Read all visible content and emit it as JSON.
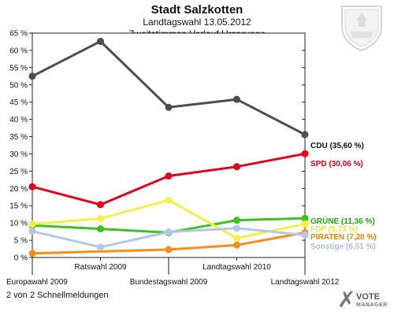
{
  "header": {
    "title": "Stadt Salzkotten",
    "subtitle": "Landtagswahl 13.05.2012",
    "chart_subtitle": "Zweitstimmen Verlauf Ursprunge"
  },
  "footer": {
    "note": "2 von 2 Schnellmeldungen"
  },
  "brand": {
    "logo_text": "VOTE",
    "logo_sub": "MANAGER",
    "crest_icon": "coat-of-arms-icon"
  },
  "chart_data": {
    "type": "line",
    "title": "Stadt Salzkotten",
    "subtitle": "Landtagswahl 13.05.2012",
    "x": [
      "Europawahl 2009",
      "Ratswahl 2009",
      "Bundestagswahl 2009",
      "Landtagswahl 2010",
      "Landtagswahl 2012"
    ],
    "x_label_rows": [
      "bottom",
      "top",
      "bottom",
      "top",
      "bottom"
    ],
    "ylim": [
      0,
      65
    ],
    "ytick_step": 5,
    "ytick_labels": [
      "0 %",
      "5 %",
      "10 %",
      "15 %",
      "20 %",
      "25 %",
      "30 %",
      "35 %",
      "40 %",
      "45 %",
      "50 %",
      "55 %",
      "60 %",
      "65 %"
    ],
    "grid": false,
    "legend": "right-end labels",
    "series": [
      {
        "name": "CDU",
        "label": "CDU (35,60 %)",
        "color": "#4d4d4d",
        "label_color": "#111111",
        "values": [
          52.5,
          62.6,
          43.5,
          45.8,
          35.6
        ]
      },
      {
        "name": "SPD",
        "label": "SPD (30,06 %)",
        "color": "#e2001a",
        "label_color": "#d0001a",
        "values": [
          20.5,
          15.3,
          23.6,
          26.3,
          30.06
        ]
      },
      {
        "name": "GRÜNE",
        "label": "GRÜNE (11,36 %)",
        "color": "#3cc21f",
        "label_color": "#22aa10",
        "values": [
          9.3,
          8.3,
          7.2,
          10.8,
          11.36
        ]
      },
      {
        "name": "FDP",
        "label": "FDP (9,73 %)",
        "color": "#f5ef4a",
        "label_color": "#f0e640",
        "values": [
          9.7,
          11.3,
          16.6,
          5.6,
          9.73
        ]
      },
      {
        "name": "PIRATEN",
        "label": "PIRATEN (7,20 %)",
        "color": "#ff8c1a",
        "label_color": "#ff8000",
        "values": [
          1.2,
          null,
          2.3,
          3.6,
          7.2
        ]
      },
      {
        "name": "Sonstige",
        "label": "Sonstige (6,51 %)",
        "color": "#b3c7e6",
        "label_color": "#a8bfe6",
        "values": [
          7.6,
          3.0,
          7.4,
          8.5,
          6.51
        ]
      }
    ]
  }
}
